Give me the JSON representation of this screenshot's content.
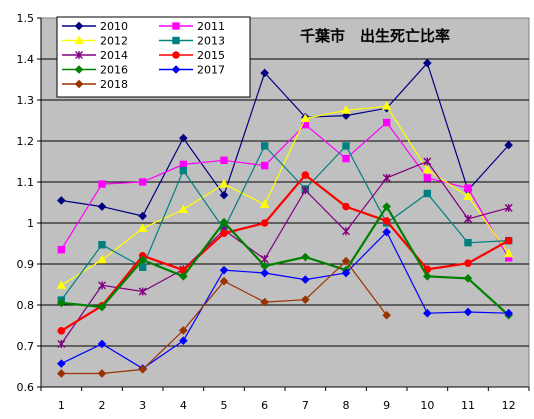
{
  "chart_data": {
    "type": "line",
    "title": "千葉市　出生死亡比率",
    "xlabel": "",
    "ylabel": "",
    "categories": [
      "1",
      "2",
      "3",
      "4",
      "5",
      "6",
      "7",
      "8",
      "9",
      "10",
      "11",
      "12"
    ],
    "ylim": [
      0.6,
      1.5
    ],
    "yticks": [
      "0.6",
      "0.7",
      "0.8",
      "0.9",
      "1",
      "1.1",
      "1.2",
      "1.3",
      "1.4",
      "1.5"
    ],
    "grid": true,
    "legend_position": "top-left",
    "plot_background": "#c0c0c0",
    "series": [
      {
        "name": "2010",
        "color": "#000080",
        "marker": "diamond",
        "values": [
          1.055,
          1.04,
          1.017,
          1.207,
          1.068,
          1.366,
          1.258,
          1.262,
          1.28,
          1.39,
          1.08,
          1.19
        ]
      },
      {
        "name": "2011",
        "color": "#ff00ff",
        "marker": "square",
        "values": [
          0.935,
          1.095,
          1.1,
          1.143,
          1.153,
          1.14,
          1.24,
          1.157,
          1.245,
          1.11,
          1.085,
          0.915
        ]
      },
      {
        "name": "2012",
        "color": "#ffff00",
        "marker": "triangle",
        "values": [
          0.848,
          0.91,
          0.987,
          1.033,
          1.095,
          1.045,
          1.255,
          1.275,
          1.285,
          1.13,
          1.065,
          0.925
        ]
      },
      {
        "name": "2013",
        "color": "#008080",
        "marker": "square",
        "values": [
          0.812,
          0.947,
          0.892,
          1.128,
          0.985,
          1.188,
          1.083,
          1.188,
          1.0,
          1.072,
          0.952,
          0.957
        ]
      },
      {
        "name": "2014",
        "color": "#800080",
        "marker": "asterisk",
        "values": [
          0.705,
          0.848,
          0.833,
          0.887,
          0.983,
          0.912,
          1.08,
          0.98,
          1.11,
          1.15,
          1.01,
          1.037
        ]
      },
      {
        "name": "2015",
        "color": "#ff0000",
        "marker": "circle",
        "values": [
          0.737,
          0.798,
          0.92,
          0.885,
          0.975,
          1.0,
          1.117,
          1.04,
          1.005,
          0.887,
          0.902,
          0.957
        ]
      },
      {
        "name": "2016",
        "color": "#008000",
        "marker": "diamond",
        "values": [
          0.805,
          0.795,
          0.91,
          0.87,
          1.002,
          0.895,
          0.917,
          0.885,
          1.04,
          0.87,
          0.865,
          0.775
        ]
      },
      {
        "name": "2017",
        "color": "#0000ff",
        "marker": "diamond",
        "values": [
          0.657,
          0.705,
          0.645,
          0.713,
          0.885,
          0.878,
          0.862,
          0.878,
          0.978,
          0.78,
          0.783,
          0.78
        ]
      },
      {
        "name": "2018",
        "color": "#993300",
        "marker": "diamond",
        "values": [
          0.633,
          0.633,
          0.643,
          0.738,
          0.858,
          0.807,
          0.813,
          0.907,
          0.775,
          null,
          null,
          null
        ]
      }
    ]
  }
}
